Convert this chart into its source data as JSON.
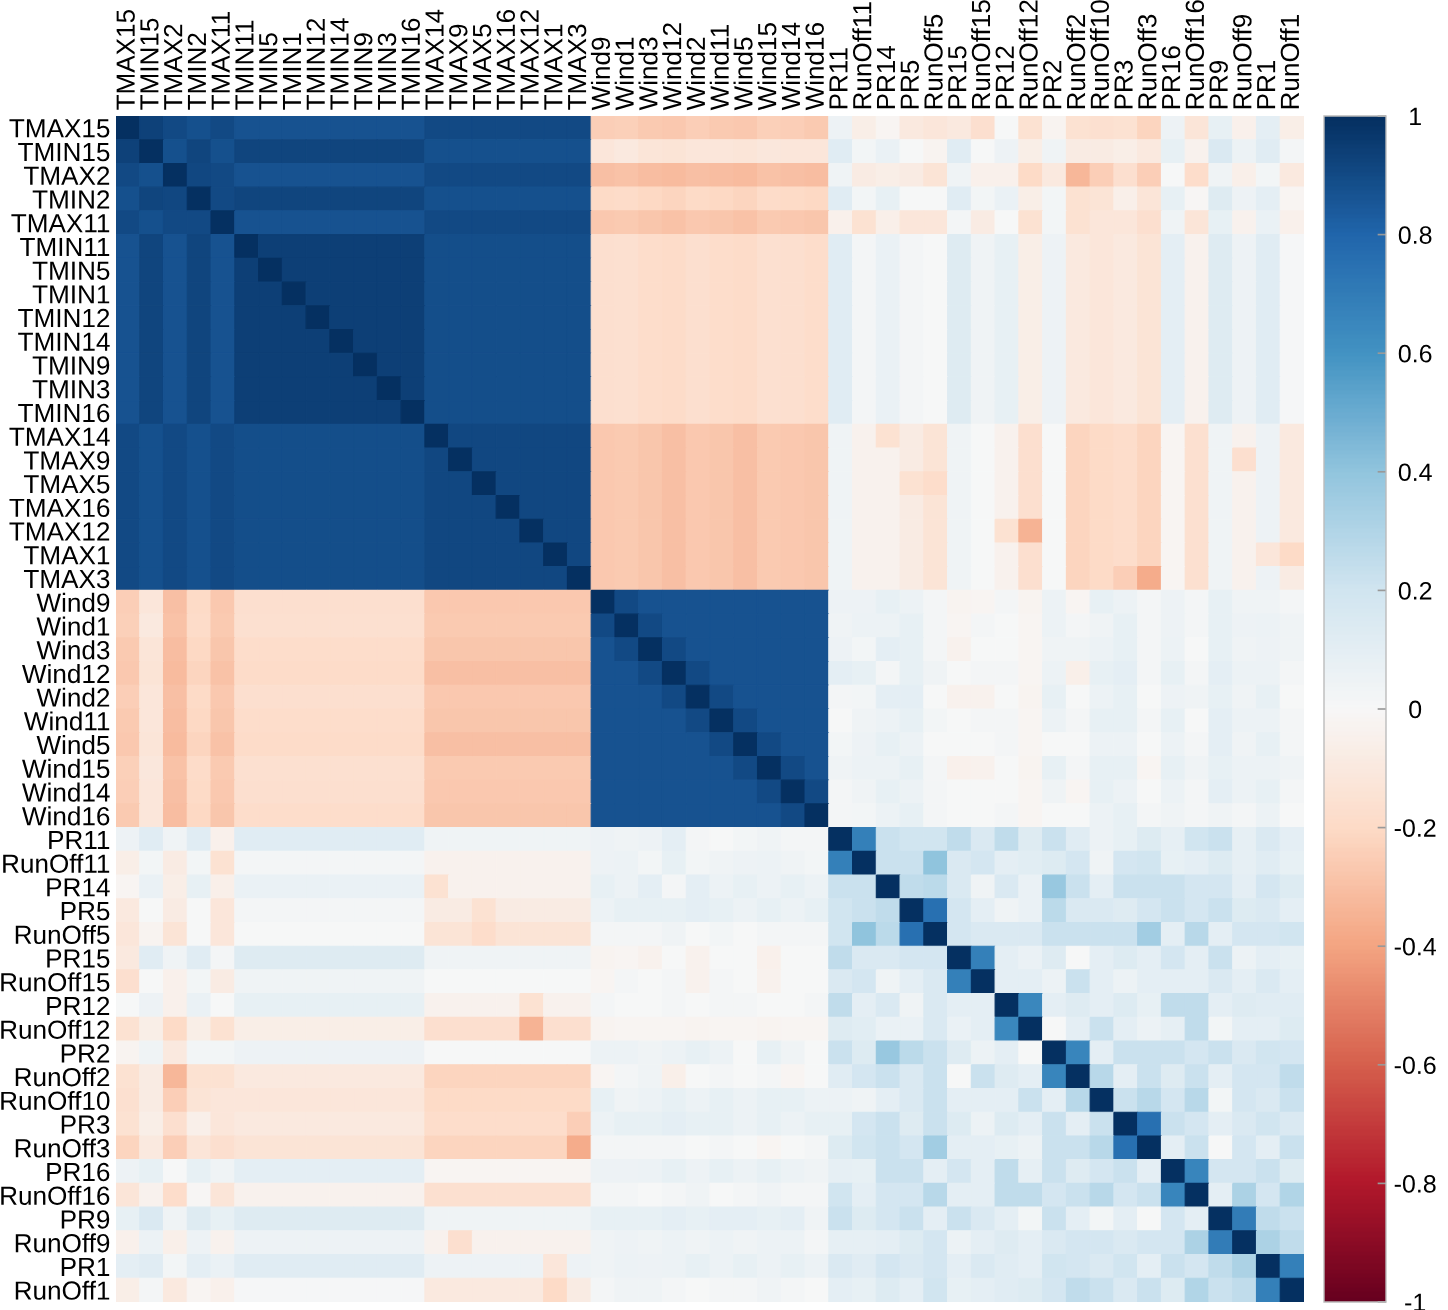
{
  "chart_data": {
    "type": "heatmap",
    "categories": [
      "TMAX15",
      "TMIN15",
      "TMAX2",
      "TMIN2",
      "TMAX11",
      "TMIN11",
      "TMIN5",
      "TMIN1",
      "TMIN12",
      "TMIN14",
      "TMIN9",
      "TMIN3",
      "TMIN16",
      "TMAX14",
      "TMAX9",
      "TMAX5",
      "TMAX16",
      "TMAX12",
      "TMAX1",
      "TMAX3",
      "Wind9",
      "Wind1",
      "Wind3",
      "Wind12",
      "Wind2",
      "Wind11",
      "Wind5",
      "Wind15",
      "Wind14",
      "Wind16",
      "PR11",
      "RunOff11",
      "PR14",
      "PR5",
      "RunOff5",
      "PR15",
      "RunOff15",
      "PR12",
      "RunOff12",
      "PR2",
      "RunOff2",
      "RunOff10",
      "PR3",
      "RunOff3",
      "PR16",
      "RunOff16",
      "PR9",
      "RunOff9",
      "PR1",
      "RunOff1"
    ],
    "y_categories": [
      "TMAX15",
      "TMIN15",
      "TMAX2",
      "TMIN2",
      "TMAX11",
      "TMIN11",
      "TMIN5",
      "TMIN1",
      "TMIN12",
      "TMIN14",
      "TMIN9",
      "TMIN3",
      "TMIN16",
      "TMAX14",
      "TMAX9",
      "TMAX5",
      "TMAX16",
      "TMAX12",
      "TMAX1",
      "TMAX3",
      "Wind9",
      "Wind1",
      "Wind3",
      "Wind12",
      "Wind2",
      "Wind11",
      "Wind5",
      "Wind15",
      "Wind14",
      "Wind16",
      "PR11",
      "RunOff11",
      "PR14",
      "PR5",
      "RunOff5",
      "PR15",
      "RunOff15",
      "PR12",
      "RunOff12",
      "PR2",
      "RunOff2",
      "RunOff10",
      "PR3",
      "RunOff3",
      "PR16",
      "RunOff16",
      "PR9",
      "RunOff9",
      "PR1",
      "RunOff1"
    ],
    "cells": [
      [
        1,
        0.93,
        0.9,
        0.88,
        0.9,
        0.87,
        0.87,
        0.87,
        0.87,
        0.87,
        0.87,
        0.87,
        0.87,
        0.9,
        0.9,
        0.9,
        0.9,
        0.9,
        0.9,
        0.9,
        -0.25,
        -0.24,
        -0.26,
        -0.27,
        -0.25,
        -0.26,
        -0.27,
        -0.24,
        -0.25,
        -0.26,
        0.05,
        -0.07,
        -0.02,
        -0.1,
        -0.12,
        -0.1,
        -0.17,
        0,
        -0.15,
        -0.03,
        -0.15,
        -0.16,
        -0.15,
        -0.22,
        0.05,
        -0.13,
        0.08,
        -0.05,
        0.1,
        -0.07
      ],
      [
        0.93,
        1,
        0.88,
        0.92,
        0.88,
        0.92,
        0.92,
        0.92,
        0.92,
        0.92,
        0.92,
        0.92,
        0.92,
        0.88,
        0.88,
        0.88,
        0.88,
        0.88,
        0.88,
        0.88,
        -0.12,
        -0.1,
        -0.13,
        -0.14,
        -0.12,
        -0.12,
        -0.13,
        -0.11,
        -0.12,
        -0.12,
        0.12,
        0.03,
        0.07,
        0,
        -0.03,
        0.12,
        0,
        0.05,
        -0.07,
        0.04,
        -0.08,
        -0.08,
        -0.07,
        -0.1,
        0.08,
        -0.04,
        0.15,
        0.06,
        0.12,
        0.02
      ],
      [
        0.9,
        0.88,
        1,
        0.91,
        0.9,
        0.87,
        0.87,
        0.87,
        0.87,
        0.87,
        0.87,
        0.87,
        0.87,
        0.9,
        0.9,
        0.9,
        0.9,
        0.9,
        0.9,
        0.9,
        -0.3,
        -0.29,
        -0.31,
        -0.32,
        -0.3,
        -0.31,
        -0.32,
        -0.29,
        -0.3,
        -0.31,
        0.04,
        -0.08,
        -0.07,
        -0.08,
        -0.14,
        0.04,
        -0.05,
        -0.05,
        -0.2,
        -0.1,
        -0.33,
        -0.25,
        -0.17,
        -0.25,
        0,
        -0.18,
        0.04,
        -0.06,
        0.03,
        -0.1
      ],
      [
        0.88,
        0.92,
        0.91,
        1,
        0.9,
        0.92,
        0.92,
        0.92,
        0.92,
        0.92,
        0.92,
        0.92,
        0.92,
        0.88,
        0.88,
        0.88,
        0.88,
        0.88,
        0.88,
        0.88,
        -0.2,
        -0.19,
        -0.21,
        -0.22,
        -0.2,
        -0.21,
        -0.22,
        -0.19,
        -0.2,
        -0.21,
        0.12,
        0.03,
        0.08,
        0,
        0,
        0.12,
        0.03,
        0.07,
        -0.07,
        0.03,
        -0.15,
        -0.14,
        -0.06,
        -0.13,
        0.08,
        -0.01,
        0.13,
        0.05,
        0.1,
        -0.02
      ],
      [
        0.9,
        0.88,
        0.9,
        0.9,
        1,
        0.87,
        0.87,
        0.87,
        0.87,
        0.87,
        0.87,
        0.87,
        0.87,
        0.9,
        0.9,
        0.9,
        0.9,
        0.9,
        0.9,
        0.9,
        -0.27,
        -0.26,
        -0.28,
        -0.29,
        -0.27,
        -0.28,
        -0.29,
        -0.26,
        -0.27,
        -0.28,
        -0.05,
        -0.15,
        -0.06,
        -0.12,
        -0.12,
        0.02,
        -0.08,
        0,
        -0.15,
        0.03,
        -0.15,
        -0.12,
        -0.12,
        -0.17,
        0.04,
        -0.13,
        0.08,
        -0.04,
        0.07,
        -0.05
      ],
      [
        0.87,
        0.92,
        0.87,
        0.92,
        0.87,
        1,
        0.94,
        0.94,
        0.94,
        0.94,
        0.94,
        0.94,
        0.94,
        0.89,
        0.89,
        0.89,
        0.89,
        0.89,
        0.89,
        0.89,
        -0.17,
        -0.16,
        -0.18,
        -0.19,
        -0.17,
        -0.18,
        -0.19,
        -0.16,
        -0.17,
        -0.18,
        0.12,
        0.02,
        0.07,
        0.02,
        0,
        0.13,
        0.04,
        0.08,
        -0.07,
        0.05,
        -0.1,
        -0.12,
        -0.1,
        -0.14,
        0.1,
        -0.04,
        0.13,
        0.05,
        0.12,
        0.01
      ],
      [
        0.87,
        0.92,
        0.87,
        0.92,
        0.87,
        0.94,
        1,
        0.94,
        0.94,
        0.94,
        0.94,
        0.94,
        0.94,
        0.89,
        0.89,
        0.89,
        0.89,
        0.89,
        0.89,
        0.89,
        -0.17,
        -0.16,
        -0.18,
        -0.19,
        -0.17,
        -0.18,
        -0.19,
        -0.16,
        -0.17,
        -0.18,
        0.12,
        0.02,
        0.07,
        0.02,
        0,
        0.13,
        0.04,
        0.08,
        -0.07,
        0.05,
        -0.1,
        -0.12,
        -0.1,
        -0.14,
        0.1,
        -0.04,
        0.13,
        0.05,
        0.12,
        0.01
      ],
      [
        0.87,
        0.92,
        0.87,
        0.92,
        0.87,
        0.94,
        0.94,
        1,
        0.94,
        0.94,
        0.94,
        0.94,
        0.94,
        0.89,
        0.89,
        0.89,
        0.89,
        0.89,
        0.89,
        0.89,
        -0.17,
        -0.16,
        -0.18,
        -0.19,
        -0.17,
        -0.18,
        -0.19,
        -0.16,
        -0.17,
        -0.18,
        0.12,
        0.02,
        0.07,
        0.02,
        0,
        0.13,
        0.04,
        0.08,
        -0.07,
        0.05,
        -0.1,
        -0.12,
        -0.1,
        -0.14,
        0.1,
        -0.04,
        0.13,
        0.05,
        0.12,
        0.01
      ],
      [
        0.87,
        0.92,
        0.87,
        0.92,
        0.87,
        0.94,
        0.94,
        0.94,
        1,
        0.94,
        0.94,
        0.94,
        0.94,
        0.89,
        0.89,
        0.89,
        0.89,
        0.89,
        0.89,
        0.89,
        -0.17,
        -0.16,
        -0.18,
        -0.19,
        -0.17,
        -0.18,
        -0.19,
        -0.16,
        -0.17,
        -0.18,
        0.12,
        0.02,
        0.07,
        0.02,
        0,
        0.13,
        0.04,
        0.08,
        -0.07,
        0.05,
        -0.1,
        -0.12,
        -0.1,
        -0.14,
        0.1,
        -0.04,
        0.13,
        0.05,
        0.12,
        0.01
      ],
      [
        0.87,
        0.92,
        0.87,
        0.92,
        0.87,
        0.94,
        0.94,
        0.94,
        0.94,
        1,
        0.94,
        0.94,
        0.94,
        0.89,
        0.89,
        0.89,
        0.89,
        0.89,
        0.89,
        0.89,
        -0.17,
        -0.16,
        -0.18,
        -0.19,
        -0.17,
        -0.18,
        -0.19,
        -0.16,
        -0.17,
        -0.18,
        0.12,
        0.02,
        0.07,
        0.02,
        0,
        0.13,
        0.04,
        0.08,
        -0.07,
        0.05,
        -0.1,
        -0.12,
        -0.1,
        -0.14,
        0.1,
        -0.04,
        0.13,
        0.05,
        0.12,
        0.01
      ],
      [
        0.87,
        0.92,
        0.87,
        0.92,
        0.87,
        0.94,
        0.94,
        0.94,
        0.94,
        0.94,
        1,
        0.94,
        0.94,
        0.89,
        0.89,
        0.89,
        0.89,
        0.89,
        0.89,
        0.89,
        -0.17,
        -0.16,
        -0.18,
        -0.19,
        -0.17,
        -0.18,
        -0.19,
        -0.16,
        -0.17,
        -0.18,
        0.12,
        0.02,
        0.07,
        0.02,
        0,
        0.13,
        0.04,
        0.08,
        -0.07,
        0.05,
        -0.1,
        -0.12,
        -0.1,
        -0.14,
        0.1,
        -0.04,
        0.13,
        0.05,
        0.12,
        0.01
      ],
      [
        0.87,
        0.92,
        0.87,
        0.92,
        0.87,
        0.94,
        0.94,
        0.94,
        0.94,
        0.94,
        0.94,
        1,
        0.94,
        0.89,
        0.89,
        0.89,
        0.89,
        0.89,
        0.89,
        0.89,
        -0.17,
        -0.16,
        -0.18,
        -0.19,
        -0.17,
        -0.18,
        -0.19,
        -0.16,
        -0.17,
        -0.18,
        0.12,
        0.02,
        0.07,
        0.02,
        0,
        0.13,
        0.04,
        0.08,
        -0.07,
        0.05,
        -0.1,
        -0.12,
        -0.1,
        -0.14,
        0.1,
        -0.04,
        0.13,
        0.05,
        0.12,
        0.01
      ],
      [
        0.87,
        0.92,
        0.87,
        0.92,
        0.87,
        0.94,
        0.94,
        0.94,
        0.94,
        0.94,
        0.94,
        0.94,
        1,
        0.89,
        0.89,
        0.89,
        0.89,
        0.89,
        0.89,
        0.89,
        -0.17,
        -0.16,
        -0.18,
        -0.19,
        -0.17,
        -0.18,
        -0.19,
        -0.16,
        -0.17,
        -0.18,
        0.12,
        0.02,
        0.07,
        0.02,
        0,
        0.13,
        0.04,
        0.08,
        -0.07,
        0.05,
        -0.1,
        -0.12,
        -0.1,
        -0.14,
        0.1,
        -0.04,
        0.13,
        0.05,
        0.12,
        0.01
      ],
      [
        0.9,
        0.88,
        0.9,
        0.88,
        0.9,
        0.89,
        0.89,
        0.89,
        0.89,
        0.89,
        0.89,
        0.89,
        0.89,
        1,
        0.91,
        0.91,
        0.91,
        0.91,
        0.91,
        0.91,
        -0.27,
        -0.26,
        -0.28,
        -0.3,
        -0.27,
        -0.28,
        -0.3,
        -0.26,
        -0.27,
        -0.28,
        0.04,
        -0.04,
        -0.15,
        -0.08,
        -0.14,
        0.04,
        0,
        -0.04,
        -0.17,
        0,
        -0.22,
        -0.2,
        -0.18,
        -0.22,
        -0.02,
        -0.16,
        0.04,
        -0.04,
        0.05,
        -0.1
      ],
      [
        0.9,
        0.88,
        0.9,
        0.88,
        0.9,
        0.89,
        0.89,
        0.89,
        0.89,
        0.89,
        0.89,
        0.89,
        0.89,
        0.91,
        1,
        0.91,
        0.91,
        0.91,
        0.91,
        0.91,
        -0.27,
        -0.26,
        -0.28,
        -0.3,
        -0.27,
        -0.28,
        -0.3,
        -0.26,
        -0.27,
        -0.28,
        0.04,
        -0.04,
        -0.04,
        -0.08,
        -0.14,
        0.04,
        0,
        -0.04,
        -0.17,
        0,
        -0.22,
        -0.2,
        -0.18,
        -0.22,
        -0.02,
        -0.16,
        0.04,
        -0.17,
        0.05,
        -0.1
      ],
      [
        0.9,
        0.88,
        0.9,
        0.88,
        0.9,
        0.89,
        0.89,
        0.89,
        0.89,
        0.89,
        0.89,
        0.89,
        0.89,
        0.91,
        0.91,
        1,
        0.91,
        0.91,
        0.91,
        0.91,
        -0.27,
        -0.26,
        -0.28,
        -0.3,
        -0.27,
        -0.28,
        -0.3,
        -0.26,
        -0.27,
        -0.28,
        0.04,
        -0.04,
        -0.04,
        -0.15,
        -0.18,
        0.04,
        0,
        -0.04,
        -0.17,
        0,
        -0.22,
        -0.2,
        -0.18,
        -0.22,
        -0.02,
        -0.16,
        0.04,
        -0.04,
        0.05,
        -0.1
      ],
      [
        0.9,
        0.88,
        0.9,
        0.88,
        0.9,
        0.89,
        0.89,
        0.89,
        0.89,
        0.89,
        0.89,
        0.89,
        0.89,
        0.91,
        0.91,
        0.91,
        1,
        0.91,
        0.91,
        0.91,
        -0.27,
        -0.26,
        -0.28,
        -0.3,
        -0.27,
        -0.28,
        -0.3,
        -0.26,
        -0.27,
        -0.28,
        0.04,
        -0.04,
        -0.04,
        -0.08,
        -0.14,
        0.04,
        0,
        -0.04,
        -0.17,
        0,
        -0.22,
        -0.2,
        -0.18,
        -0.22,
        -0.02,
        -0.16,
        0.04,
        -0.04,
        0.05,
        -0.1
      ],
      [
        0.9,
        0.88,
        0.9,
        0.88,
        0.9,
        0.89,
        0.89,
        0.89,
        0.89,
        0.89,
        0.89,
        0.89,
        0.89,
        0.91,
        0.91,
        0.91,
        0.91,
        1,
        0.91,
        0.91,
        -0.27,
        -0.26,
        -0.28,
        -0.3,
        -0.27,
        -0.28,
        -0.3,
        -0.26,
        -0.27,
        -0.28,
        0.04,
        -0.04,
        -0.04,
        -0.08,
        -0.14,
        0.04,
        0,
        -0.15,
        -0.35,
        0,
        -0.22,
        -0.2,
        -0.18,
        -0.22,
        -0.02,
        -0.16,
        0.04,
        -0.04,
        0.05,
        -0.1
      ],
      [
        0.9,
        0.88,
        0.9,
        0.88,
        0.9,
        0.89,
        0.89,
        0.89,
        0.89,
        0.89,
        0.89,
        0.89,
        0.89,
        0.91,
        0.91,
        0.91,
        0.91,
        0.91,
        1,
        0.91,
        -0.27,
        -0.26,
        -0.28,
        -0.3,
        -0.27,
        -0.28,
        -0.3,
        -0.26,
        -0.27,
        -0.28,
        0.04,
        -0.04,
        -0.04,
        -0.08,
        -0.14,
        0.04,
        0,
        -0.04,
        -0.17,
        0,
        -0.22,
        -0.2,
        -0.18,
        -0.22,
        -0.02,
        -0.16,
        0.04,
        -0.04,
        -0.12,
        -0.2
      ],
      [
        0.9,
        0.88,
        0.9,
        0.88,
        0.9,
        0.89,
        0.89,
        0.89,
        0.89,
        0.89,
        0.89,
        0.89,
        0.89,
        0.91,
        0.91,
        0.91,
        0.91,
        0.91,
        0.91,
        1,
        -0.27,
        -0.26,
        -0.28,
        -0.3,
        -0.27,
        -0.28,
        -0.3,
        -0.26,
        -0.27,
        -0.28,
        0.04,
        -0.04,
        -0.04,
        -0.08,
        -0.14,
        0.04,
        0,
        -0.04,
        -0.17,
        0,
        -0.22,
        -0.2,
        -0.25,
        -0.37,
        -0.02,
        -0.16,
        0.04,
        -0.04,
        0.05,
        -0.08
      ],
      [
        -0.25,
        -0.12,
        -0.3,
        -0.2,
        -0.27,
        -0.17,
        -0.17,
        -0.17,
        -0.17,
        -0.17,
        -0.17,
        -0.17,
        -0.17,
        -0.27,
        -0.27,
        -0.27,
        -0.27,
        -0.27,
        -0.27,
        -0.27,
        1,
        0.9,
        0.87,
        0.87,
        0.87,
        0.87,
        0.87,
        0.87,
        0.87,
        0.87,
        0.05,
        0.05,
        0.08,
        0.06,
        0.02,
        -0.03,
        -0.02,
        0.02,
        -0.03,
        0.06,
        -0.02,
        0.08,
        0.06,
        0.02,
        0.05,
        0.02,
        0.08,
        0.04,
        0.04,
        0.02
      ],
      [
        -0.24,
        -0.1,
        -0.29,
        -0.19,
        -0.26,
        -0.16,
        -0.16,
        -0.16,
        -0.16,
        -0.16,
        -0.16,
        -0.16,
        -0.16,
        -0.26,
        -0.26,
        -0.26,
        -0.26,
        -0.26,
        -0.26,
        -0.26,
        0.9,
        1,
        0.9,
        0.87,
        0.87,
        0.87,
        0.87,
        0.87,
        0.87,
        0.87,
        0.04,
        0.06,
        0.06,
        0.08,
        0.02,
        -0.02,
        0.02,
        0,
        -0.02,
        0.06,
        0.02,
        0.04,
        0.08,
        0.02,
        0.05,
        0.02,
        0.08,
        0.05,
        0.06,
        0.04
      ],
      [
        -0.26,
        -0.13,
        -0.31,
        -0.21,
        -0.28,
        -0.18,
        -0.18,
        -0.18,
        -0.18,
        -0.18,
        -0.18,
        -0.18,
        -0.18,
        -0.28,
        -0.28,
        -0.28,
        -0.28,
        -0.28,
        -0.28,
        -0.28,
        0.87,
        0.9,
        1,
        0.9,
        0.87,
        0.87,
        0.87,
        0.87,
        0.87,
        0.87,
        0.05,
        0.03,
        0.1,
        0.08,
        0.02,
        -0.04,
        0,
        0,
        -0.02,
        0.04,
        0.04,
        0.06,
        0.08,
        0.02,
        0.06,
        0,
        0.08,
        0.04,
        0.05,
        0.04
      ],
      [
        -0.27,
        -0.14,
        -0.32,
        -0.22,
        -0.29,
        -0.19,
        -0.19,
        -0.19,
        -0.19,
        -0.19,
        -0.19,
        -0.19,
        -0.19,
        -0.3,
        -0.3,
        -0.3,
        -0.3,
        -0.3,
        -0.3,
        -0.3,
        0.87,
        0.87,
        0.9,
        1,
        0.9,
        0.87,
        0.87,
        0.87,
        0.87,
        0.87,
        0.1,
        0.08,
        0.02,
        0.08,
        0.04,
        0,
        0.02,
        0.02,
        -0.02,
        0.06,
        -0.06,
        0.08,
        0.1,
        0.02,
        0.08,
        0.02,
        0.1,
        0.06,
        0.06,
        0.02
      ],
      [
        -0.25,
        -0.12,
        -0.3,
        -0.2,
        -0.27,
        -0.17,
        -0.17,
        -0.17,
        -0.17,
        -0.17,
        -0.17,
        -0.17,
        -0.17,
        -0.27,
        -0.27,
        -0.27,
        -0.27,
        -0.27,
        -0.27,
        -0.27,
        0.87,
        0.87,
        0.87,
        0.9,
        1,
        0.9,
        0.87,
        0.87,
        0.87,
        0.87,
        0.02,
        0.03,
        0.1,
        0.1,
        0,
        -0.04,
        -0.04,
        0,
        -0.03,
        0.08,
        0,
        0.06,
        0.08,
        0,
        0.05,
        0.04,
        0.08,
        0.04,
        0.08,
        0
      ],
      [
        -0.26,
        -0.12,
        -0.31,
        -0.21,
        -0.28,
        -0.18,
        -0.18,
        -0.18,
        -0.18,
        -0.18,
        -0.18,
        -0.18,
        -0.18,
        -0.28,
        -0.28,
        -0.28,
        -0.28,
        -0.28,
        -0.28,
        -0.28,
        0.87,
        0.87,
        0.87,
        0.87,
        0.9,
        1,
        0.9,
        0.87,
        0.87,
        0.87,
        0,
        0.04,
        0.06,
        0.08,
        0.03,
        0,
        0.02,
        0.02,
        -0.02,
        0.06,
        0.02,
        0.08,
        0.08,
        0.02,
        0.08,
        0,
        0.1,
        0.06,
        0.06,
        0.02
      ],
      [
        -0.27,
        -0.13,
        -0.32,
        -0.22,
        -0.29,
        -0.19,
        -0.19,
        -0.19,
        -0.19,
        -0.19,
        -0.19,
        -0.19,
        -0.19,
        -0.3,
        -0.3,
        -0.3,
        -0.3,
        -0.3,
        -0.3,
        -0.3,
        0.87,
        0.87,
        0.87,
        0.87,
        0.87,
        0.9,
        1,
        0.9,
        0.87,
        0.87,
        0.03,
        0.05,
        0.08,
        0.06,
        0,
        0,
        0,
        0.02,
        -0.02,
        0,
        0,
        0.06,
        0.06,
        0,
        0.06,
        0.02,
        0.1,
        0.04,
        0.08,
        0.02
      ],
      [
        -0.24,
        -0.11,
        -0.29,
        -0.19,
        -0.26,
        -0.16,
        -0.16,
        -0.16,
        -0.16,
        -0.16,
        -0.16,
        -0.16,
        -0.16,
        -0.26,
        -0.26,
        -0.26,
        -0.26,
        -0.26,
        -0.26,
        -0.26,
        0.87,
        0.87,
        0.87,
        0.87,
        0.87,
        0.87,
        0.9,
        1,
        0.9,
        0.87,
        0.04,
        0.06,
        0.06,
        0.08,
        0.02,
        -0.05,
        -0.04,
        0,
        -0.03,
        0.08,
        0.02,
        0.08,
        0.08,
        -0.02,
        0.08,
        0.04,
        0.08,
        0.06,
        0.06,
        0.04
      ],
      [
        -0.25,
        -0.12,
        -0.3,
        -0.2,
        -0.27,
        -0.17,
        -0.17,
        -0.17,
        -0.17,
        -0.17,
        -0.17,
        -0.17,
        -0.17,
        -0.27,
        -0.27,
        -0.27,
        -0.27,
        -0.27,
        -0.27,
        -0.27,
        0.87,
        0.87,
        0.87,
        0.87,
        0.87,
        0.87,
        0.87,
        0.9,
        1,
        0.9,
        0.02,
        0.04,
        0.08,
        0.06,
        0.02,
        0,
        0,
        0,
        -0.02,
        0.04,
        -0.02,
        0.08,
        0.06,
        0,
        0.06,
        0.02,
        0.1,
        0.06,
        0.08,
        0.02
      ],
      [
        -0.26,
        -0.12,
        -0.31,
        -0.21,
        -0.28,
        -0.18,
        -0.18,
        -0.18,
        -0.18,
        -0.18,
        -0.18,
        -0.18,
        -0.18,
        -0.28,
        -0.28,
        -0.28,
        -0.28,
        -0.28,
        -0.28,
        -0.28,
        0.87,
        0.87,
        0.87,
        0.87,
        0.87,
        0.87,
        0.87,
        0.87,
        0.9,
        1,
        0.02,
        0.03,
        0.06,
        0.08,
        0.02,
        0,
        0,
        0.02,
        -0.02,
        0,
        0,
        0.06,
        0.08,
        0.02,
        0.04,
        0.02,
        0.04,
        0.02,
        0.06,
        0
      ],
      [
        0.05,
        0.12,
        0.04,
        0.12,
        -0.05,
        0.12,
        0.12,
        0.12,
        0.12,
        0.12,
        0.12,
        0.12,
        0.12,
        0.04,
        0.04,
        0.04,
        0.04,
        0.04,
        0.04,
        0.04,
        0.05,
        0.04,
        0.05,
        0.1,
        0.02,
        0,
        0.03,
        0.04,
        0.02,
        0.02,
        1,
        0.68,
        0.22,
        0.2,
        0.2,
        0.25,
        0.15,
        0.25,
        0.13,
        0.22,
        0.12,
        0.06,
        0.08,
        0.14,
        0.09,
        0.2,
        0.22,
        0.09,
        0.15,
        0.1
      ],
      [
        -0.07,
        0.03,
        -0.08,
        0.03,
        -0.15,
        0.02,
        0.02,
        0.02,
        0.02,
        0.02,
        0.02,
        0.02,
        0.02,
        -0.04,
        -0.04,
        -0.04,
        -0.04,
        -0.04,
        -0.04,
        -0.04,
        0.05,
        0.06,
        0.03,
        0.08,
        0.03,
        0.04,
        0.05,
        0.06,
        0.04,
        0.03,
        0.68,
        1,
        0.22,
        0.22,
        0.4,
        0.15,
        0.18,
        0.1,
        0.11,
        0.14,
        0.18,
        0.04,
        0.18,
        0.2,
        0.08,
        0.1,
        0.14,
        0.09,
        0.12,
        0.08
      ],
      [
        -0.02,
        0.07,
        -0.07,
        0.08,
        -0.06,
        0.07,
        0.07,
        0.07,
        0.07,
        0.07,
        0.07,
        0.07,
        0.07,
        -0.15,
        -0.04,
        -0.04,
        -0.04,
        -0.04,
        -0.04,
        -0.04,
        0.08,
        0.06,
        0.1,
        0.02,
        0.1,
        0.06,
        0.08,
        0.06,
        0.08,
        0.06,
        0.22,
        0.22,
        1,
        0.25,
        0.27,
        0.15,
        0.04,
        0.15,
        0.07,
        0.38,
        0.22,
        0.1,
        0.22,
        0.22,
        0.22,
        0.18,
        0.18,
        0.1,
        0.18,
        0.14
      ],
      [
        -0.1,
        0,
        -0.08,
        0,
        -0.12,
        0.02,
        0.02,
        0.02,
        0.02,
        0.02,
        0.02,
        0.02,
        0.02,
        -0.08,
        -0.08,
        -0.15,
        -0.08,
        -0.08,
        -0.08,
        -0.08,
        0.06,
        0.08,
        0.08,
        0.08,
        0.1,
        0.08,
        0.06,
        0.08,
        0.06,
        0.08,
        0.2,
        0.22,
        0.25,
        1,
        0.75,
        0.18,
        0.1,
        0.04,
        0.07,
        0.27,
        0.15,
        0.15,
        0.13,
        0.18,
        0.22,
        0.18,
        0.22,
        0.14,
        0.15,
        0.1
      ],
      [
        -0.12,
        -0.03,
        -0.14,
        0,
        -0.12,
        0,
        0,
        0,
        0,
        0,
        0,
        0,
        0,
        -0.14,
        -0.14,
        -0.18,
        -0.14,
        -0.14,
        -0.14,
        -0.14,
        0.02,
        0.02,
        0.02,
        0.04,
        0,
        0.03,
        0,
        0.02,
        0.02,
        0.02,
        0.2,
        0.4,
        0.27,
        0.75,
        1,
        0.18,
        0.15,
        0.15,
        0.15,
        0.22,
        0.22,
        0.22,
        0.22,
        0.35,
        0.1,
        0.28,
        0.1,
        0.18,
        0.18,
        0.2
      ],
      [
        -0.1,
        0.12,
        0.04,
        0.12,
        0.02,
        0.13,
        0.13,
        0.13,
        0.13,
        0.13,
        0.13,
        0.13,
        0.13,
        0.04,
        0.04,
        0.04,
        0.04,
        0.04,
        0.04,
        0.04,
        -0.03,
        -0.02,
        -0.04,
        0,
        -0.04,
        0,
        0,
        -0.05,
        0,
        0,
        0.25,
        0.15,
        0.15,
        0.18,
        0.18,
        1,
        0.68,
        0.1,
        0.07,
        0.13,
        0,
        0.1,
        0.14,
        0.1,
        0.18,
        0.1,
        0.22,
        0.06,
        0.1,
        0.08
      ],
      [
        -0.17,
        0,
        -0.05,
        0.03,
        -0.08,
        0.04,
        0.04,
        0.04,
        0.04,
        0.04,
        0.04,
        0.04,
        0.04,
        0,
        0,
        0,
        0,
        0,
        0,
        0,
        -0.02,
        0.02,
        0,
        0.02,
        -0.04,
        0.02,
        0,
        -0.04,
        0,
        0,
        0.15,
        0.18,
        0.04,
        0.1,
        0.15,
        0.68,
        1,
        0.1,
        0.1,
        0.06,
        0.22,
        0.1,
        0.06,
        0.1,
        0.1,
        0.1,
        0.15,
        0.1,
        0.15,
        0.1
      ],
      [
        0,
        0.05,
        -0.05,
        0.07,
        0,
        0.08,
        0.08,
        0.08,
        0.08,
        0.08,
        0.08,
        0.08,
        0.08,
        -0.04,
        -0.04,
        -0.04,
        -0.04,
        -0.15,
        -0.04,
        -0.04,
        0.02,
        0,
        0,
        0.02,
        0,
        0.02,
        0.02,
        0,
        0,
        0.02,
        0.25,
        0.1,
        0.15,
        0.04,
        0.15,
        0.1,
        0.1,
        1,
        0.65,
        0.1,
        0.13,
        0.1,
        0.14,
        0.08,
        0.25,
        0.25,
        0.1,
        0.13,
        0.12,
        0.12
      ],
      [
        -0.15,
        -0.07,
        -0.2,
        -0.07,
        -0.15,
        -0.07,
        -0.07,
        -0.07,
        -0.07,
        -0.07,
        -0.07,
        -0.07,
        -0.07,
        -0.17,
        -0.17,
        -0.17,
        -0.17,
        -0.35,
        -0.17,
        -0.17,
        -0.03,
        -0.02,
        -0.02,
        -0.02,
        -0.03,
        -0.02,
        -0.02,
        -0.03,
        -0.02,
        -0.02,
        0.13,
        0.11,
        0.07,
        0.07,
        0.15,
        0.07,
        0.1,
        0.65,
        1,
        0,
        0.1,
        0.22,
        0.1,
        0.06,
        0.09,
        0.25,
        0.03,
        0.1,
        0.1,
        0.14
      ],
      [
        -0.03,
        0.04,
        -0.1,
        0.03,
        0.03,
        0.05,
        0.05,
        0.05,
        0.05,
        0.05,
        0.05,
        0.05,
        0.05,
        0,
        0,
        0,
        0,
        0,
        0,
        0,
        0.06,
        0.06,
        0.04,
        0.06,
        0.08,
        0.06,
        0,
        0.08,
        0.04,
        0,
        0.22,
        0.14,
        0.38,
        0.27,
        0.22,
        0.13,
        0.06,
        0.1,
        0,
        1,
        0.66,
        0.1,
        0.22,
        0.22,
        0.22,
        0.18,
        0.22,
        0.15,
        0.2,
        0.18
      ],
      [
        -0.15,
        -0.08,
        -0.33,
        -0.15,
        -0.15,
        -0.1,
        -0.1,
        -0.1,
        -0.1,
        -0.1,
        -0.1,
        -0.1,
        -0.1,
        -0.22,
        -0.22,
        -0.22,
        -0.22,
        -0.22,
        -0.22,
        -0.22,
        -0.02,
        0.02,
        0.04,
        -0.06,
        0,
        0.02,
        0,
        0.02,
        -0.02,
        0,
        0.12,
        0.18,
        0.22,
        0.15,
        0.22,
        0,
        0.22,
        0.13,
        0.1,
        0.66,
        1,
        0.28,
        0.1,
        0.22,
        0.13,
        0.22,
        0.1,
        0.18,
        0.18,
        0.25
      ],
      [
        -0.16,
        -0.08,
        -0.25,
        -0.14,
        -0.12,
        -0.12,
        -0.12,
        -0.12,
        -0.12,
        -0.12,
        -0.12,
        -0.12,
        -0.12,
        -0.2,
        -0.2,
        -0.2,
        -0.2,
        -0.2,
        -0.2,
        -0.2,
        0.08,
        0.04,
        0.06,
        0.08,
        0.06,
        0.08,
        0.06,
        0.08,
        0.08,
        0.06,
        0.06,
        0.04,
        0.1,
        0.15,
        0.22,
        0.1,
        0.1,
        0.1,
        0.22,
        0.1,
        0.28,
        1,
        0.22,
        0.28,
        0.18,
        0.28,
        0.03,
        0.18,
        0.15,
        0.22
      ],
      [
        -0.15,
        -0.07,
        -0.17,
        -0.06,
        -0.12,
        -0.1,
        -0.1,
        -0.1,
        -0.1,
        -0.1,
        -0.1,
        -0.1,
        -0.1,
        -0.18,
        -0.18,
        -0.18,
        -0.18,
        -0.18,
        -0.18,
        -0.25,
        0.06,
        0.08,
        0.08,
        0.1,
        0.08,
        0.08,
        0.06,
        0.08,
        0.06,
        0.08,
        0.08,
        0.18,
        0.22,
        0.13,
        0.22,
        0.14,
        0.06,
        0.14,
        0.1,
        0.22,
        0.1,
        0.22,
        1,
        0.75,
        0.22,
        0.18,
        0.1,
        0.15,
        0.2,
        0.15
      ],
      [
        -0.22,
        -0.1,
        -0.25,
        -0.13,
        -0.17,
        -0.14,
        -0.14,
        -0.14,
        -0.14,
        -0.14,
        -0.14,
        -0.14,
        -0.14,
        -0.22,
        -0.22,
        -0.22,
        -0.22,
        -0.22,
        -0.22,
        -0.37,
        0.02,
        0.02,
        0.02,
        0.02,
        0,
        0.02,
        0,
        -0.02,
        0,
        0.02,
        0.14,
        0.2,
        0.22,
        0.18,
        0.35,
        0.1,
        0.1,
        0.08,
        0.06,
        0.22,
        0.22,
        0.28,
        0.75,
        1,
        0.1,
        0.22,
        0,
        0.18,
        0.1,
        0.22
      ],
      [
        0.05,
        0.08,
        0,
        0.08,
        0.04,
        0.1,
        0.1,
        0.1,
        0.1,
        0.1,
        0.1,
        0.1,
        0.1,
        -0.02,
        -0.02,
        -0.02,
        -0.02,
        -0.02,
        -0.02,
        -0.02,
        0.05,
        0.05,
        0.06,
        0.08,
        0.05,
        0.08,
        0.06,
        0.08,
        0.06,
        0.04,
        0.09,
        0.08,
        0.22,
        0.22,
        0.1,
        0.18,
        0.1,
        0.25,
        0.09,
        0.22,
        0.13,
        0.18,
        0.22,
        0.1,
        1,
        0.66,
        0.18,
        0.18,
        0.22,
        0.14
      ],
      [
        -0.13,
        -0.04,
        -0.18,
        -0.01,
        -0.13,
        -0.04,
        -0.04,
        -0.04,
        -0.04,
        -0.04,
        -0.04,
        -0.04,
        -0.04,
        -0.16,
        -0.16,
        -0.16,
        -0.16,
        -0.16,
        -0.16,
        -0.16,
        0.02,
        0.02,
        0,
        0.02,
        0.04,
        0,
        0.02,
        0.04,
        0.02,
        0.02,
        0.2,
        0.1,
        0.18,
        0.18,
        0.28,
        0.1,
        0.1,
        0.25,
        0.25,
        0.18,
        0.22,
        0.28,
        0.18,
        0.22,
        0.66,
        1,
        0.1,
        0.32,
        0.18,
        0.3
      ],
      [
        0.08,
        0.15,
        0.04,
        0.13,
        0.08,
        0.13,
        0.13,
        0.13,
        0.13,
        0.13,
        0.13,
        0.13,
        0.13,
        0.04,
        0.04,
        0.04,
        0.04,
        0.04,
        0.04,
        0.04,
        0.08,
        0.08,
        0.08,
        0.1,
        0.08,
        0.1,
        0.1,
        0.08,
        0.1,
        0.04,
        0.22,
        0.14,
        0.18,
        0.22,
        0.1,
        0.22,
        0.15,
        0.1,
        0.03,
        0.22,
        0.1,
        0.03,
        0.1,
        0,
        0.18,
        0.1,
        1,
        0.7,
        0.25,
        0.22
      ],
      [
        -0.05,
        0.06,
        -0.06,
        0.05,
        -0.04,
        0.05,
        0.05,
        0.05,
        0.05,
        0.05,
        0.05,
        0.05,
        0.05,
        -0.04,
        -0.17,
        -0.04,
        -0.04,
        -0.04,
        -0.04,
        -0.04,
        0.04,
        0.05,
        0.04,
        0.06,
        0.04,
        0.06,
        0.04,
        0.06,
        0.06,
        0.02,
        0.09,
        0.09,
        0.1,
        0.14,
        0.18,
        0.06,
        0.1,
        0.13,
        0.1,
        0.15,
        0.18,
        0.18,
        0.15,
        0.18,
        0.18,
        0.32,
        0.7,
        1,
        0.32,
        0.25
      ],
      [
        0.1,
        0.12,
        0.03,
        0.1,
        0.07,
        0.12,
        0.12,
        0.12,
        0.12,
        0.12,
        0.12,
        0.12,
        0.12,
        0.05,
        0.05,
        0.05,
        0.05,
        0.05,
        -0.12,
        0.05,
        0.04,
        0.06,
        0.05,
        0.06,
        0.08,
        0.06,
        0.08,
        0.06,
        0.08,
        0.06,
        0.15,
        0.12,
        0.18,
        0.15,
        0.18,
        0.1,
        0.15,
        0.12,
        0.1,
        0.2,
        0.18,
        0.15,
        0.2,
        0.1,
        0.22,
        0.18,
        0.25,
        0.32,
        1,
        0.68
      ],
      [
        -0.07,
        0.02,
        -0.1,
        -0.02,
        -0.05,
        0.01,
        0.01,
        0.01,
        0.01,
        0.01,
        0.01,
        0.01,
        0.01,
        -0.1,
        -0.1,
        -0.1,
        -0.1,
        -0.1,
        -0.2,
        -0.08,
        0.02,
        0.04,
        0.04,
        0.02,
        0,
        0.02,
        0.02,
        0.04,
        0.02,
        0,
        0.1,
        0.08,
        0.14,
        0.1,
        0.2,
        0.08,
        0.1,
        0.12,
        0.14,
        0.18,
        0.25,
        0.22,
        0.15,
        0.22,
        0.14,
        0.3,
        0.22,
        0.25,
        0.68,
        1
      ]
    ],
    "clim": [
      -1,
      1
    ],
    "cticks": [
      -1,
      -0.8,
      -0.6,
      -0.4,
      -0.2,
      0,
      0.2,
      0.4,
      0.6,
      0.8,
      1
    ]
  }
}
